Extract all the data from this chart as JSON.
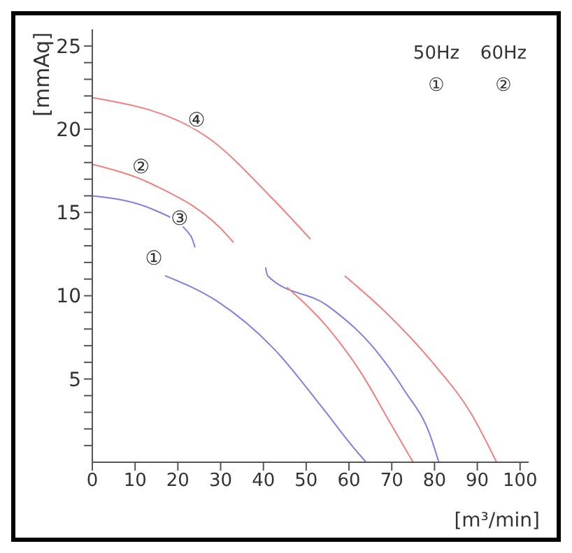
{
  "chart_data": {
    "type": "line",
    "xlabel": "[m³/min]",
    "ylabel": "[mmAq]",
    "xlim": [
      0,
      102
    ],
    "xticks": [
      0,
      10,
      20,
      30,
      40,
      50,
      60,
      70,
      80,
      90,
      100
    ],
    "ylim": [
      0,
      26
    ],
    "yticks": [
      {
        "value": 1,
        "label": null
      },
      {
        "value": 2,
        "label": null
      },
      {
        "value": 3,
        "label": null
      },
      {
        "value": 4,
        "label": null
      },
      5,
      {
        "value": 6,
        "label": null
      },
      {
        "value": 7,
        "label": null
      },
      {
        "value": 8,
        "label": null
      },
      {
        "value": 9,
        "label": null
      },
      10,
      {
        "value": 11,
        "label": null
      },
      {
        "value": 12,
        "label": null
      },
      {
        "value": 13,
        "label": null
      },
      {
        "value": 14,
        "label": null
      },
      15,
      {
        "value": 16,
        "label": null
      },
      {
        "value": 17,
        "label": null
      },
      {
        "value": 18,
        "label": null
      },
      {
        "value": 19,
        "label": null
      },
      20,
      {
        "value": 21,
        "label": null
      },
      {
        "value": 22,
        "label": null
      },
      {
        "value": 23,
        "label": null
      },
      {
        "value": 24,
        "label": null
      },
      25
    ],
    "grid": false,
    "legend": false,
    "marker": "none",
    "line_style": "solid",
    "series": [
      {
        "color": "#8080e0",
        "x": [
          0,
          14,
          23,
          24,
          null,
          17,
          29,
          42.5,
          54,
          61,
          64
        ],
        "values": [
          16,
          15.2,
          13.6,
          12.9,
          null,
          11.2,
          9.7,
          6.8,
          3.2,
          0.9,
          0
        ]
      },
      {
        "color": "#8080e0",
        "x": [
          40.5,
          41,
          55,
          65,
          73,
          79,
          81
        ],
        "values": [
          11.7,
          11.2,
          9.4,
          7.1,
          4.3,
          1.6,
          0
        ]
      },
      {
        "color": "#f08080",
        "x": [
          0,
          14,
          32,
          33,
          null,
          45.5,
          55,
          63,
          70,
          75
        ],
        "values": [
          17.9,
          16.7,
          13.5,
          13.2,
          null,
          10.5,
          8.1,
          5.3,
          2.2,
          0
        ]
      },
      {
        "color": "#f08080",
        "x": [
          0,
          27,
          41.5,
          51,
          null,
          59,
          69,
          79.5,
          88.6,
          94.5
        ],
        "values": [
          21.9,
          19.5,
          16,
          13.4,
          null,
          11.2,
          8.9,
          6,
          2.9,
          0
        ]
      }
    ],
    "annotations": [
      "50Hz",
      "60Hz",
      "①",
      "②",
      {
        "text": "④",
        "x": 27,
        "y": 19.5
      },
      {
        "text": "②",
        "x": 14,
        "y": 16.7
      },
      {
        "text": "③",
        "x": 23,
        "y": 13.6
      },
      {
        "text": "①",
        "x": 17,
        "y": 11.2
      }
    ]
  }
}
